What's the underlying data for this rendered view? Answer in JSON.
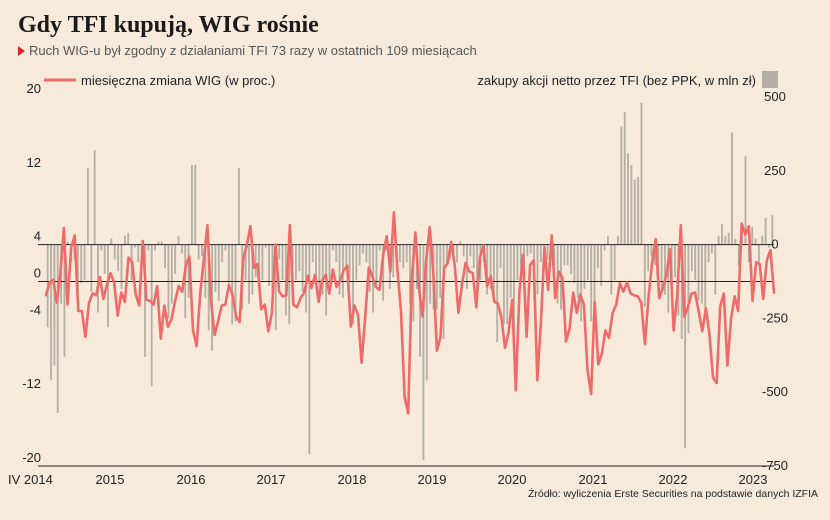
{
  "chart_data": {
    "type": "bar+line",
    "title": "Gdy TFI kupują, WIG rośnie",
    "subtitle": "Ruch WIG-u był zgodny z działaniami TFI 73 razy w ostatnich 109 miesiącach",
    "source": "Źródło: wyliczenia Erste Securities na podstawie danych IZFIA",
    "x_start_label": "IV 2014",
    "year_labels": [
      "2015",
      "2016",
      "2017",
      "2018",
      "2019",
      "2020",
      "2021",
      "2022",
      "2023"
    ],
    "left_axis": {
      "ticks": [
        20,
        12,
        4,
        0,
        -4,
        -12,
        -20
      ],
      "range": [
        -20,
        20
      ]
    },
    "right_axis": {
      "ticks": [
        500,
        250,
        0,
        -250,
        -500,
        -750
      ],
      "range": [
        -750,
        500
      ]
    },
    "series": [
      {
        "name": "miesięczna zmiana WIG (w proc.)",
        "kind": "line",
        "axis": "left",
        "color": "#ee6b6a",
        "values": [
          -1.5,
          -0.1,
          0.2,
          -2.3,
          0.8,
          5.8,
          -2.5,
          3.6,
          5.0,
          -3.2,
          -3.2,
          -6.0,
          -2.3,
          -1.3,
          -1.5,
          0.5,
          -1.9,
          -0.3,
          0.9,
          -0.1,
          -3.7,
          -1.2,
          -2.2,
          2.6,
          2.1,
          -1.4,
          -2.6,
          4.4,
          -2.0,
          -2.1,
          -2.5,
          -0.5,
          -6.2,
          -2.6,
          -4.9,
          -4.1,
          -2.1,
          -0.5,
          -1.1,
          1.8,
          2.7,
          -5.3,
          -7.0,
          -1.3,
          2.3,
          6.1,
          -2.1,
          -5.8,
          -4.3,
          -2.6,
          -2.5,
          -0.4,
          -1.4,
          -3.8,
          -4.4,
          2.5,
          3.9,
          6.0,
          1.5,
          1.9,
          -3.0,
          -2.5,
          -5.4,
          -3.4,
          4.0,
          -1.1,
          -1.6,
          -1.5,
          6.1,
          -2.5,
          -2.8,
          -1.8,
          -1.2,
          0.6,
          -0.7,
          0.7,
          -2.2,
          0.1,
          0.7,
          -1.3,
          1.3,
          -0.6,
          0.1,
          1.2,
          1.7,
          -4.9,
          -2.6,
          -3.6,
          -8.8,
          -3.8,
          1.5,
          0.6,
          -0.6,
          -0.9,
          2.8,
          4.9,
          1.1,
          7.5,
          1.3,
          -3.3,
          -12.5,
          -14.3,
          0.3,
          5.3,
          -0.8,
          -3.8,
          2.2,
          5.9,
          0.9,
          -7.5,
          -6.0,
          1.4,
          2.0,
          4.3,
          1.7,
          -3.4,
          -0.3,
          2.0,
          1.1,
          0.9,
          -2.8,
          2.6,
          3.9,
          -0.5,
          0.6,
          -2.2,
          -2.4,
          -3.9,
          -7.2,
          -5.5,
          -2.0,
          -11.8,
          -1.2,
          2.9,
          -6.0,
          1.8,
          2.3,
          -10.7,
          -4.5,
          3.7,
          -0.9,
          5.0,
          -1.8,
          1.1,
          0.4,
          -6.5,
          -5.1,
          -1.2,
          -3.4,
          -1.4,
          -2.5,
          -9.6,
          -12.2,
          -2.2,
          -9.0,
          -7.8,
          -5.3,
          -6.1,
          -3.4,
          -2.5,
          -0.2,
          -1.1,
          -0.1,
          -1.3,
          -1.5,
          -1.6,
          -2.3,
          -6.8,
          -1.7,
          2.0,
          4.6,
          -1.8,
          -0.7,
          0.7,
          3.5,
          -5.3,
          -1.5,
          6.1,
          -3.8,
          -2.8,
          -1.3,
          -1.2,
          -3.3,
          -5.4,
          -2.9,
          -5.7,
          -10.4,
          -11.0,
          -2.7,
          -1.3,
          -9.1,
          -4.1,
          -1.6,
          -3.2,
          6.3,
          5.1,
          6.0,
          -2.1,
          2.1,
          1.9,
          -1.9,
          2.3,
          3.4,
          -1.2
        ]
      },
      {
        "name": "zakupy akcji netto przez TFI (bez PPK, w mln zł)",
        "kind": "bar",
        "axis": "right",
        "color": "#b3b0a3",
        "values": [
          -280,
          -460,
          -410,
          -570,
          -200,
          -380,
          10,
          -60,
          -50,
          -160,
          -130,
          -120,
          260,
          -160,
          320,
          -230,
          -20,
          -100,
          -280,
          20,
          -50,
          -90,
          -150,
          30,
          40,
          -120,
          -10,
          -60,
          -20,
          -380,
          -20,
          -480,
          -20,
          10,
          10,
          -80,
          -250,
          -200,
          -100,
          30,
          -30,
          -250,
          -180,
          270,
          270,
          -50,
          -40,
          -180,
          -290,
          -360,
          -160,
          -190,
          -60,
          -20,
          -140,
          -270,
          -260,
          260,
          -220,
          -120,
          -200,
          -170,
          -110,
          -100,
          -120,
          -10,
          -140,
          -180,
          -290,
          -50,
          -120,
          -240,
          -270,
          -80,
          -120,
          -90,
          -160,
          -230,
          -710,
          -60,
          -120,
          -170,
          -170,
          -240,
          -130,
          -20,
          -60,
          -170,
          -180,
          -80,
          -130,
          -270,
          -120,
          -70,
          -30,
          -60,
          -160,
          -230,
          -140,
          -20,
          -190,
          -20,
          -150,
          -110,
          -40,
          -60,
          -80,
          -60,
          -200,
          -260,
          -150,
          -380,
          -730,
          -460,
          -200,
          -220,
          -220,
          -180,
          -320,
          -70,
          -50,
          -40,
          -60,
          10,
          -40,
          -150,
          -40,
          -80,
          -180,
          -120,
          -60,
          -170,
          -150,
          -180,
          -330,
          -80,
          -270,
          -270,
          -180,
          -330,
          -120,
          -80,
          -120,
          -40,
          -30,
          -190,
          -170,
          -60,
          -80,
          -50,
          -40,
          -70,
          -200,
          -220,
          -70,
          -70,
          -100,
          -130,
          -180,
          -260,
          -150,
          -120,
          -260,
          -230,
          -80,
          -140,
          -20,
          30,
          -170,
          -120,
          30,
          400,
          450,
          310,
          270,
          220,
          230,
          480,
          -210,
          -90,
          -40,
          -70,
          -140,
          -160,
          -170,
          -230,
          -120,
          -110,
          -240,
          -320,
          -690,
          -300,
          -90,
          -120,
          -190,
          -200,
          -230,
          -60,
          -30,
          -170,
          30,
          70,
          30,
          40,
          380,
          20,
          -70,
          50,
          300,
          -60,
          60,
          20,
          -60,
          30,
          90,
          -10,
          100
        ]
      }
    ],
    "legend": {
      "placement": "top",
      "line_label": "miesięczna zmiana WIG (w proc.)",
      "bar_label": "zakupy akcji netto przez TFI (bez PPK, w mln zł)"
    },
    "grid": false
  }
}
